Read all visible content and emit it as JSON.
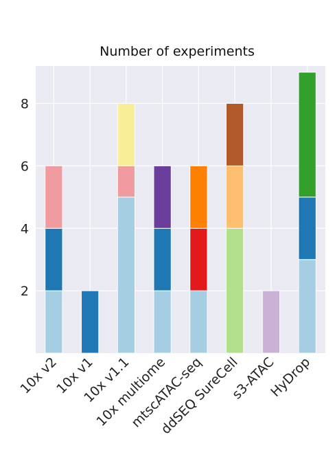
{
  "chart_data": {
    "type": "bar",
    "stacked": true,
    "title": "Number of experiments",
    "xlabel": "",
    "ylabel": "",
    "ylim": [
      0,
      9.2
    ],
    "yticks": [
      2,
      4,
      6,
      8
    ],
    "grid": true,
    "legend": "none",
    "categories": [
      "10x v2",
      "10x v1",
      "10x v1.1",
      "10x multiome",
      "mtscATAC-seq",
      "ddSEQ SureCell",
      "s3-ATAC",
      "HyDrop"
    ],
    "stacks": [
      {
        "category": "10x v2",
        "segments": [
          {
            "value": 2,
            "color": "#a6cee3"
          },
          {
            "value": 2,
            "color": "#1f78b4"
          },
          {
            "value": 2,
            "color": "#f09ba0"
          }
        ]
      },
      {
        "category": "10x v1",
        "segments": [
          {
            "value": 2,
            "color": "#1f78b4"
          }
        ]
      },
      {
        "category": "10x v1.1",
        "segments": [
          {
            "value": 5,
            "color": "#a6cee3"
          },
          {
            "value": 1,
            "color": "#f09ba0"
          },
          {
            "value": 2,
            "color": "#f7ee97"
          }
        ]
      },
      {
        "category": "10x multiome",
        "segments": [
          {
            "value": 2,
            "color": "#a6cee3"
          },
          {
            "value": 2,
            "color": "#1f78b4"
          },
          {
            "value": 2,
            "color": "#6a3d9a"
          }
        ]
      },
      {
        "category": "mtscATAC-seq",
        "segments": [
          {
            "value": 2,
            "color": "#a6cee3"
          },
          {
            "value": 2,
            "color": "#e31a1c"
          },
          {
            "value": 2,
            "color": "#ff7f00"
          }
        ]
      },
      {
        "category": "ddSEQ SureCell",
        "segments": [
          {
            "value": 4,
            "color": "#b2df8a"
          },
          {
            "value": 2,
            "color": "#fdbf6f"
          },
          {
            "value": 2,
            "color": "#b15928"
          }
        ]
      },
      {
        "category": "s3-ATAC",
        "segments": [
          {
            "value": 2,
            "color": "#cab2d6"
          }
        ]
      },
      {
        "category": "HyDrop",
        "segments": [
          {
            "value": 3,
            "color": "#a6cee3"
          },
          {
            "value": 2,
            "color": "#1f78b4"
          },
          {
            "value": 4,
            "color": "#33a02c"
          }
        ]
      }
    ],
    "colors": {
      "plot_background": "#eaeaf2",
      "grid": "#ffffff"
    }
  }
}
